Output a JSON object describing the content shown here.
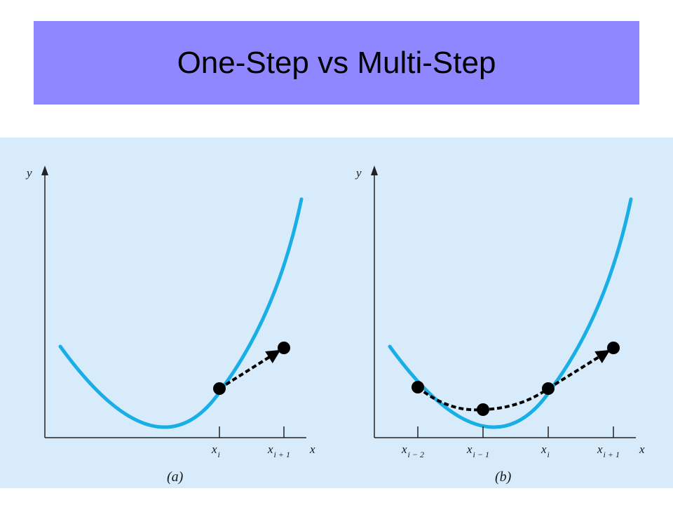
{
  "slide": {
    "title": "One-Step vs Multi-Step"
  },
  "colors": {
    "title_bar": "#8f87ff",
    "panel_background": "#d7ebfb",
    "curve": "#1aaee6",
    "points": "#000000"
  },
  "panels": [
    {
      "caption": "(a)",
      "y_axis_label": "y",
      "x_axis_label": "x",
      "ticks": [
        {
          "main": "x",
          "sub": "i"
        },
        {
          "main": "x",
          "sub": "i + 1"
        }
      ]
    },
    {
      "caption": "(b)",
      "y_axis_label": "y",
      "x_axis_label": "x",
      "ticks": [
        {
          "main": "x",
          "sub": "i − 2"
        },
        {
          "main": "x",
          "sub": "i − 1"
        },
        {
          "main": "x",
          "sub": "i"
        },
        {
          "main": "x",
          "sub": "i + 1"
        }
      ]
    }
  ]
}
